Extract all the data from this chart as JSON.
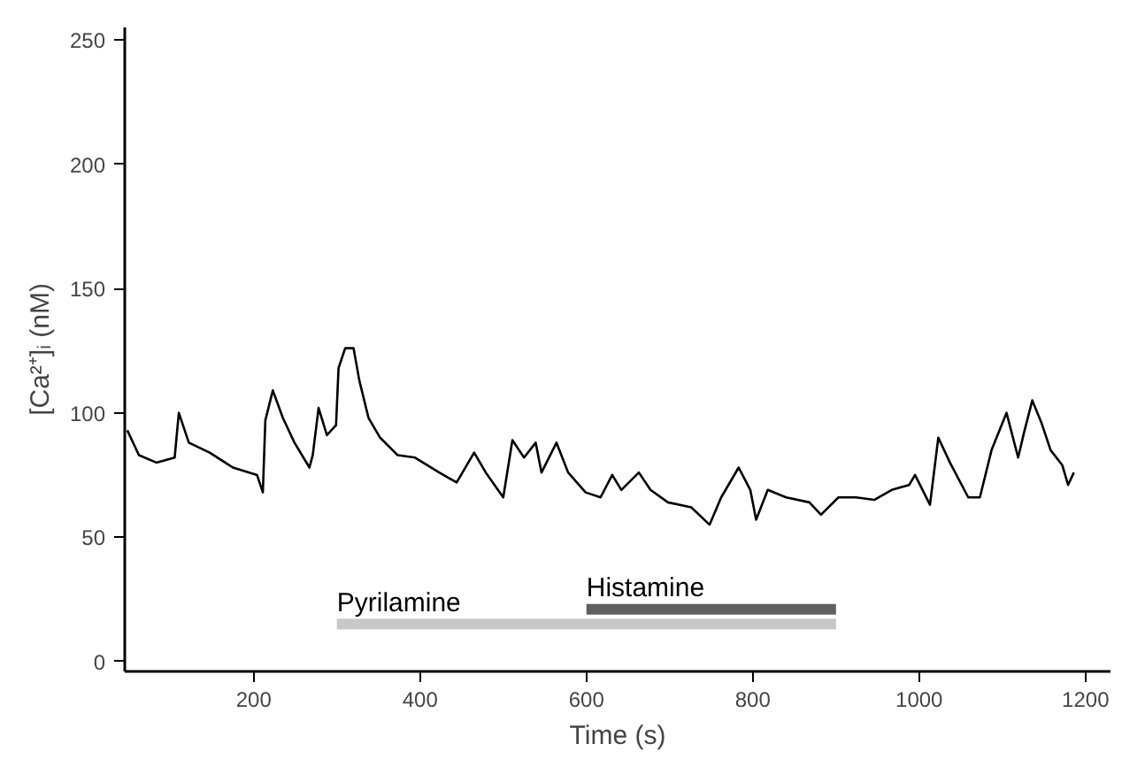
{
  "chart_data": {
    "type": "line",
    "xlabel": "Time (s)",
    "ylabel": "[Ca²⁺]ᵢ (nM)",
    "x": [
      48,
      62,
      83,
      105,
      110,
      122,
      147,
      175,
      204,
      211,
      214,
      223,
      235,
      249,
      267,
      271,
      278,
      288,
      299,
      302,
      310,
      320,
      327,
      338,
      352,
      373,
      394,
      423,
      444,
      465,
      479,
      500,
      511,
      525,
      539,
      546,
      564,
      578,
      599,
      617,
      631,
      642,
      663,
      677,
      698,
      726,
      748,
      762,
      783,
      797,
      804,
      818,
      840,
      868,
      882,
      903,
      924,
      946,
      967,
      988,
      995,
      1013,
      1023,
      1037,
      1059,
      1073,
      1087,
      1105,
      1119,
      1126,
      1136,
      1147,
      1158,
      1172,
      1179,
      1186
    ],
    "series": [
      {
        "name": "Pyrilamine",
        "color": "#c8c8c8",
        "x": [
          300,
          900
        ],
        "values": [
          15,
          15
        ]
      },
      {
        "name": "Histamine",
        "color": "#606060",
        "x": [
          600,
          900
        ],
        "values": [
          21,
          21
        ]
      },
      {
        "color": "#000000",
        "values": [
          93,
          83,
          80,
          82,
          100,
          88,
          84,
          78,
          75,
          68,
          97,
          109,
          98,
          88,
          78,
          83,
          102,
          91,
          95,
          118,
          126,
          126,
          113,
          98,
          90,
          83,
          82,
          76,
          72,
          84,
          76,
          66,
          89,
          82,
          88,
          76,
          88,
          76,
          68,
          66,
          75,
          69,
          76,
          69,
          64,
          62,
          55,
          66,
          78,
          69,
          57,
          69,
          66,
          64,
          59,
          66,
          66,
          65,
          69,
          71,
          75,
          63,
          90,
          80,
          66,
          66,
          85,
          100,
          82,
          92,
          105,
          96,
          85,
          79,
          71,
          76
        ]
      }
    ],
    "xlim": [
      45,
      1230
    ],
    "ylim": [
      -4,
      255
    ],
    "xticks": [
      200,
      400,
      600,
      800,
      1000,
      1200
    ],
    "yticks": [
      0,
      50,
      100,
      150,
      200,
      250
    ],
    "grid": false,
    "legend": false,
    "marker": "none",
    "line_style": "solid"
  }
}
